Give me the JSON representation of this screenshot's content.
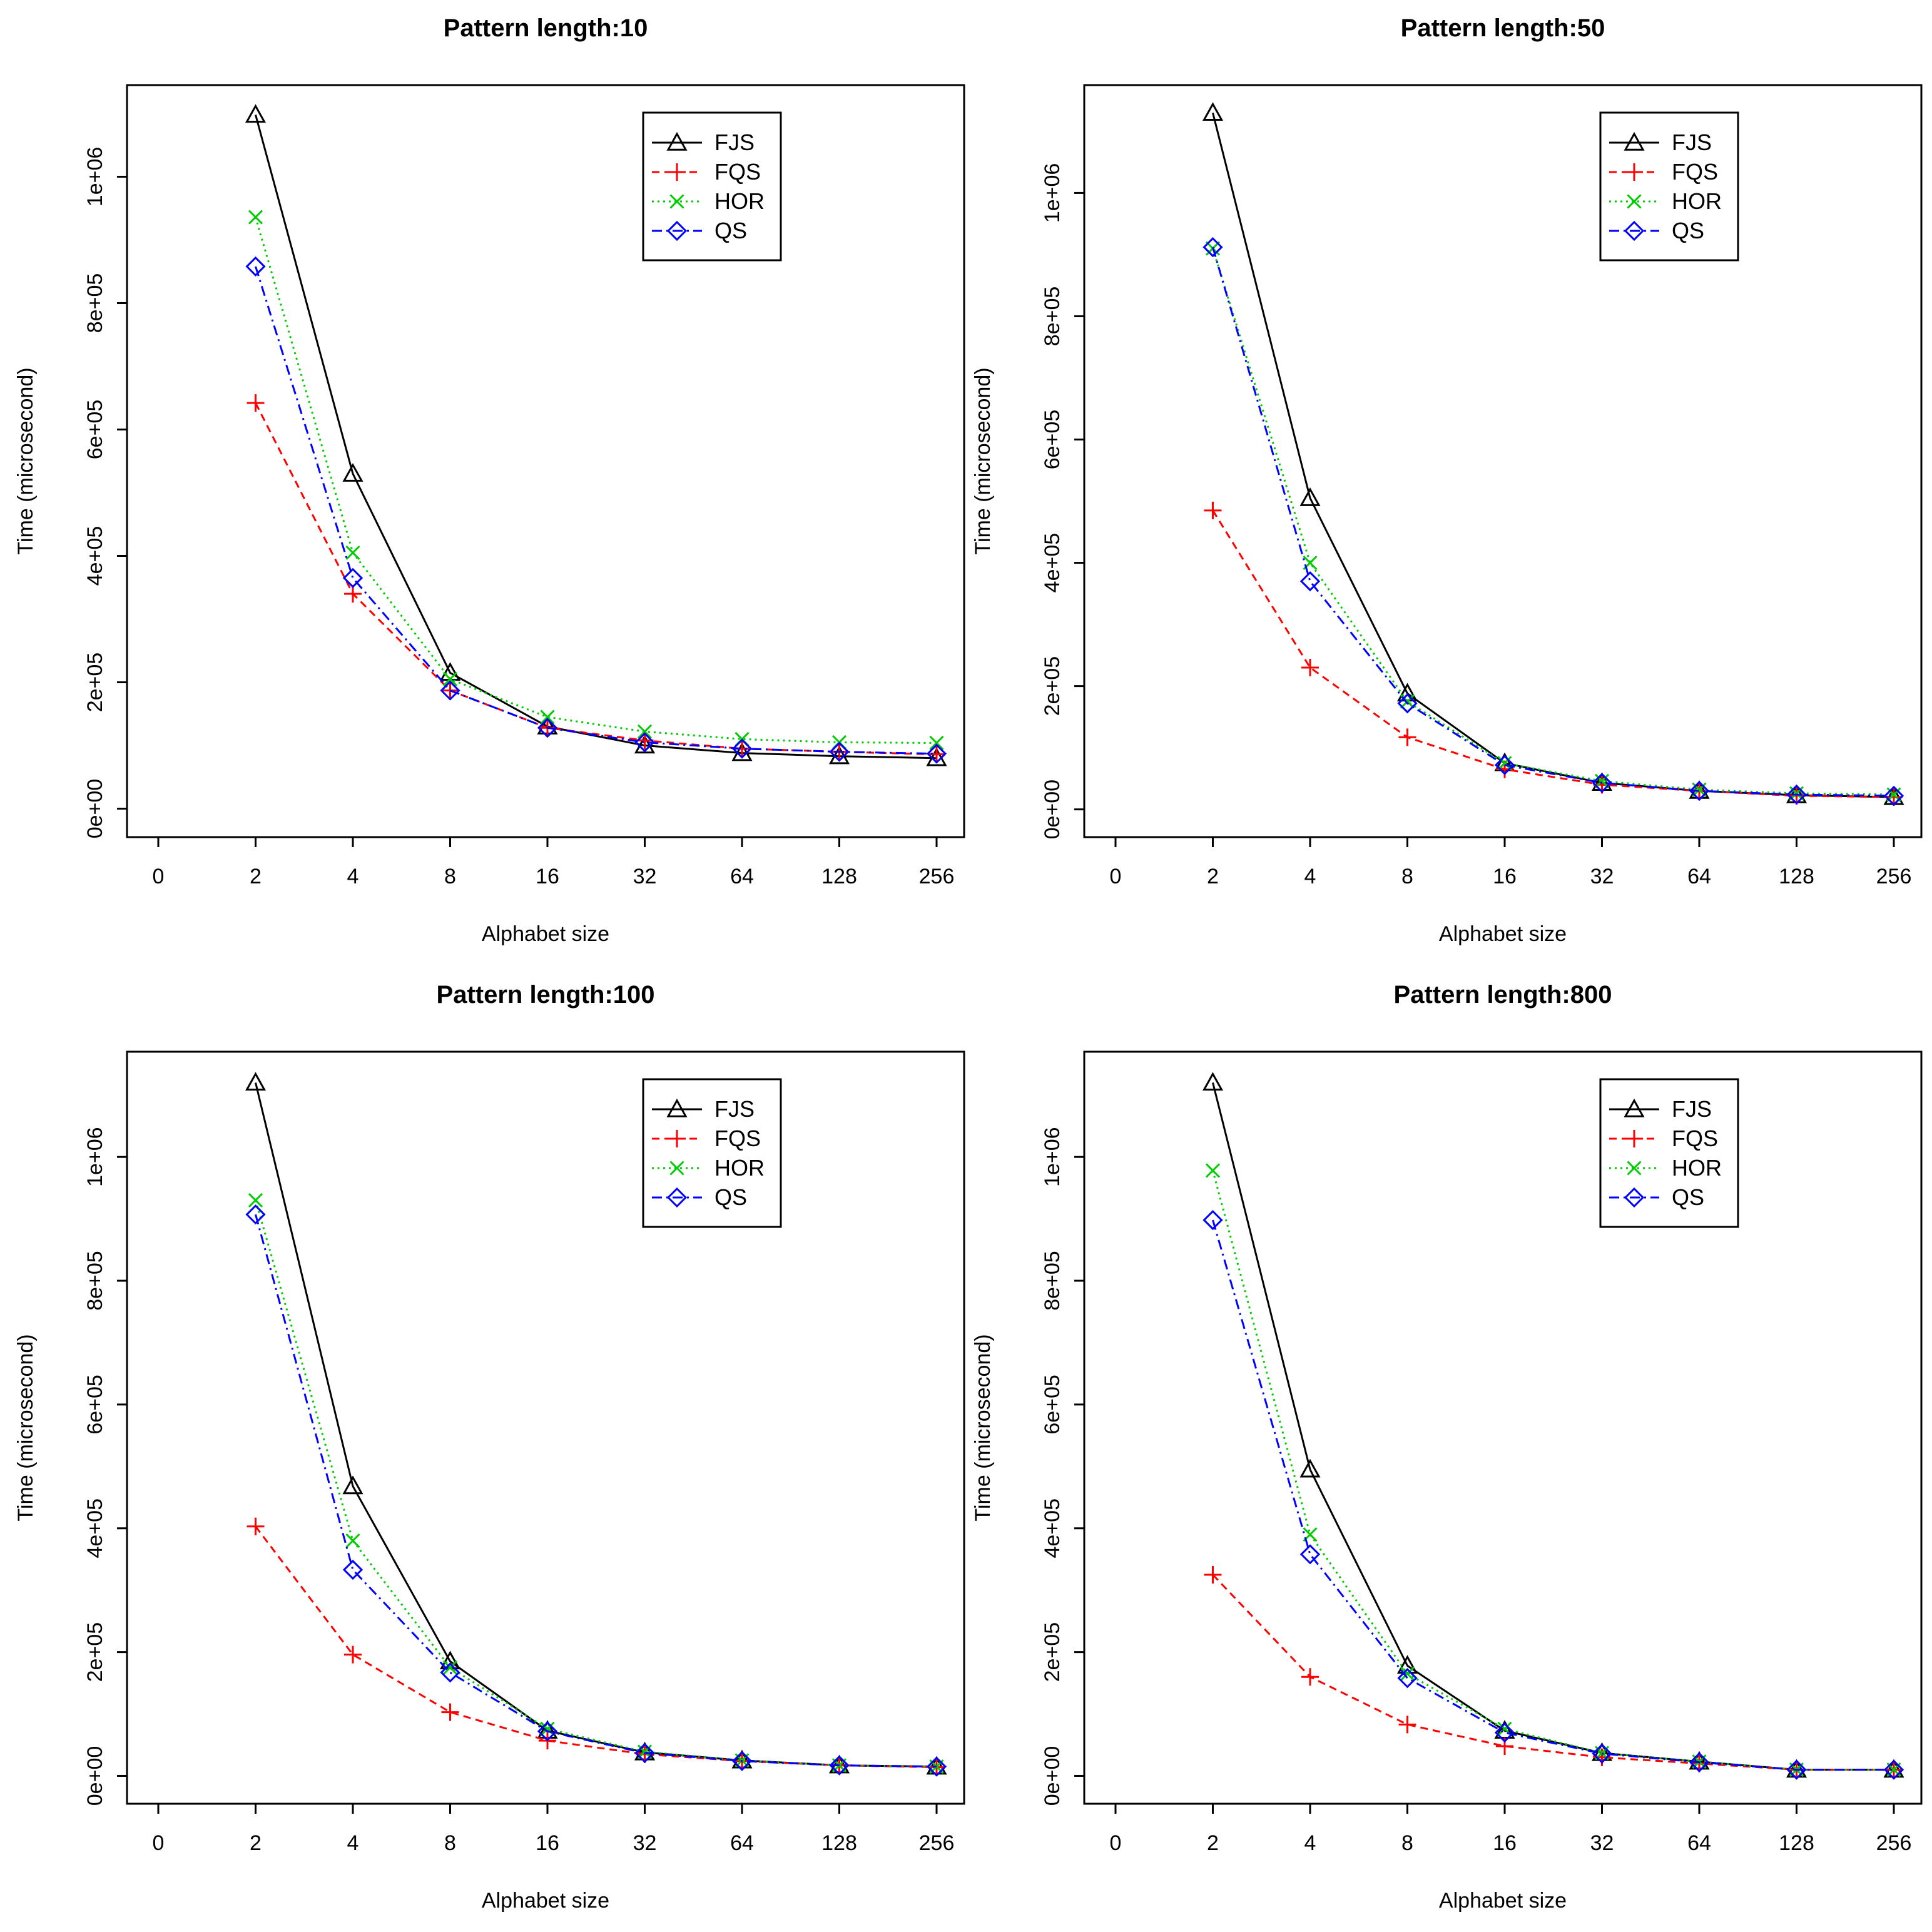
{
  "chart_data": [
    {
      "type": "line",
      "title": "Pattern length:10",
      "xlabel": "Alphabet size",
      "ylabel": "Time (microsecond)",
      "x_tick_labels": [
        "0",
        "2",
        "4",
        "8",
        "16",
        "32",
        "64",
        "128",
        "256"
      ],
      "categories": [
        "2",
        "4",
        "8",
        "16",
        "32",
        "64",
        "128",
        "256"
      ],
      "y_ticks": [
        0,
        200000,
        400000,
        600000,
        800000,
        1000000
      ],
      "y_tick_labels": [
        "0e+00",
        "2e+05",
        "4e+05",
        "6e+05",
        "8e+05",
        "1e+06"
      ],
      "ylim": [
        -45000,
        1145000
      ],
      "legend_position": "top-right",
      "series": [
        {
          "name": "FJS",
          "values": [
            1098000,
            530000,
            215000,
            130000,
            100000,
            88000,
            83000,
            80000
          ]
        },
        {
          "name": "FQS",
          "values": [
            642000,
            340000,
            187000,
            128000,
            108000,
            95000,
            90000,
            86000
          ]
        },
        {
          "name": "HOR",
          "values": [
            936000,
            405000,
            205000,
            145000,
            122000,
            110000,
            105000,
            104000
          ]
        },
        {
          "name": "QS",
          "values": [
            858000,
            365000,
            187000,
            128000,
            105000,
            95000,
            90000,
            87000
          ]
        }
      ]
    },
    {
      "type": "line",
      "title": "Pattern length:50",
      "xlabel": "Alphabet size",
      "ylabel": "Time (microsecond)",
      "x_tick_labels": [
        "0",
        "2",
        "4",
        "8",
        "16",
        "32",
        "64",
        "128",
        "256"
      ],
      "categories": [
        "2",
        "4",
        "8",
        "16",
        "32",
        "64",
        "128",
        "256"
      ],
      "y_ticks": [
        0,
        200000,
        400000,
        600000,
        800000,
        1000000
      ],
      "y_tick_labels": [
        "0e+00",
        "2e+05",
        "4e+05",
        "6e+05",
        "8e+05",
        "1e+06"
      ],
      "ylim": [
        -45000,
        1175000
      ],
      "legend_position": "top-right",
      "series": [
        {
          "name": "FJS",
          "values": [
            1130000,
            505000,
            188000,
            75000,
            43000,
            30000,
            23000,
            20000
          ]
        },
        {
          "name": "FQS",
          "values": [
            485000,
            230000,
            117000,
            65000,
            40000,
            30000,
            22000,
            20000
          ]
        },
        {
          "name": "HOR",
          "values": [
            910000,
            400000,
            175000,
            75000,
            46000,
            32000,
            26000,
            24000
          ]
        },
        {
          "name": "QS",
          "values": [
            912000,
            370000,
            172000,
            72000,
            43000,
            30000,
            24000,
            22000
          ]
        }
      ]
    },
    {
      "type": "line",
      "title": "Pattern length:100",
      "xlabel": "Alphabet size",
      "ylabel": "Time (microsecond)",
      "x_tick_labels": [
        "0",
        "2",
        "4",
        "8",
        "16",
        "32",
        "64",
        "128",
        "256"
      ],
      "categories": [
        "2",
        "4",
        "8",
        "16",
        "32",
        "64",
        "128",
        "256"
      ],
      "y_ticks": [
        0,
        200000,
        400000,
        600000,
        800000,
        1000000
      ],
      "y_tick_labels": [
        "0e+00",
        "2e+05",
        "4e+05",
        "6e+05",
        "8e+05",
        "1e+06"
      ],
      "ylim": [
        -45000,
        1170000
      ],
      "legend_position": "top-right",
      "series": [
        {
          "name": "FJS",
          "values": [
            1120000,
            468000,
            185000,
            73000,
            38000,
            25000,
            17000,
            15000
          ]
        },
        {
          "name": "FQS",
          "values": [
            403000,
            196000,
            103000,
            57000,
            35000,
            24000,
            17000,
            14000
          ]
        },
        {
          "name": "HOR",
          "values": [
            930000,
            380000,
            175000,
            76000,
            39000,
            25000,
            17000,
            15000
          ]
        },
        {
          "name": "QS",
          "values": [
            907000,
            333000,
            167000,
            72000,
            37000,
            24000,
            17000,
            15000
          ]
        }
      ]
    },
    {
      "type": "line",
      "title": "Pattern length:800",
      "xlabel": "Alphabet size",
      "ylabel": "Time (microsecond)",
      "x_tick_labels": [
        "0",
        "2",
        "4",
        "8",
        "16",
        "32",
        "64",
        "128",
        "256"
      ],
      "categories": [
        "2",
        "4",
        "8",
        "16",
        "32",
        "64",
        "128",
        "256"
      ],
      "y_ticks": [
        0,
        200000,
        400000,
        600000,
        800000,
        1000000
      ],
      "y_tick_labels": [
        "0e+00",
        "2e+05",
        "4e+05",
        "6e+05",
        "8e+05",
        "1e+06"
      ],
      "ylim": [
        -45000,
        1170000
      ],
      "legend_position": "top-right",
      "series": [
        {
          "name": "FJS",
          "values": [
            1120000,
            495000,
            178000,
            73000,
            37000,
            23000,
            10000,
            10000
          ]
        },
        {
          "name": "FQS",
          "values": [
            325000,
            160000,
            83000,
            48000,
            30000,
            20000,
            10000,
            10000
          ]
        },
        {
          "name": "HOR",
          "values": [
            978000,
            390000,
            165000,
            76000,
            37000,
            23000,
            10000,
            10000
          ]
        },
        {
          "name": "QS",
          "values": [
            898000,
            358000,
            158000,
            70000,
            36000,
            22000,
            10000,
            10000
          ]
        }
      ]
    }
  ],
  "series_styles": [
    {
      "name": "FJS",
      "color": "#000000",
      "dash": "none",
      "marker": "triangle"
    },
    {
      "name": "FQS",
      "color": "#ff0000",
      "dash": "12,8",
      "marker": "plus"
    },
    {
      "name": "HOR",
      "color": "#00cc00",
      "dash": "3,6",
      "marker": "cross"
    },
    {
      "name": "QS",
      "color": "#0000ff",
      "dash": "16,7,3,7",
      "marker": "diamond"
    }
  ]
}
